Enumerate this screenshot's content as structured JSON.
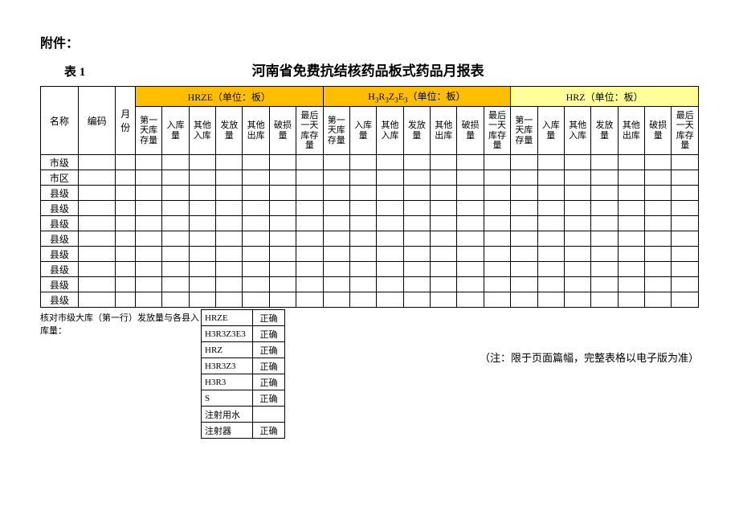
{
  "attachment": "附件：",
  "table_label": "表 1",
  "title": "河南省免费抗结核药品板式药品月报表",
  "left_headers": [
    "名称",
    "编码",
    "月份"
  ],
  "groups": [
    {
      "label": "HRZE（单位：板）",
      "class": "hdr-yellow1"
    },
    {
      "label_html": "H<sub>3</sub>R<sub>3</sub>Z<sub>3</sub>E<sub>3</sub>（单位：板）",
      "class": "hdr-yellow2"
    },
    {
      "label": "HRZ（单位：板）",
      "class": "hdr-yellow3"
    }
  ],
  "sub_columns": [
    "第一天库存量",
    "入库量",
    "其他入库",
    "发放量",
    "其他出库",
    "破损量",
    "最后一天库存量"
  ],
  "row_labels": [
    "市级",
    "市区",
    "县级",
    "县级",
    "县级",
    "县级",
    "县级",
    "县级",
    "县级",
    "县级"
  ],
  "verify_label": "核对市级大库（第一行）发放量与各县入库量：",
  "verify_rows": [
    {
      "name": "HRZE",
      "status": "正确"
    },
    {
      "name": "H3R3Z3E3",
      "status": "正确"
    },
    {
      "name": "HRZ",
      "status": "正确"
    },
    {
      "name": "H3R3Z3",
      "status": "正确"
    },
    {
      "name": "H3R3",
      "status": "正确"
    },
    {
      "name": "S",
      "status": "正确"
    },
    {
      "name": "注射用水",
      "status": ""
    },
    {
      "name": "注射器",
      "status": "正确"
    }
  ],
  "note": "（注：限于页面篇幅，完整表格以电子版为准）"
}
